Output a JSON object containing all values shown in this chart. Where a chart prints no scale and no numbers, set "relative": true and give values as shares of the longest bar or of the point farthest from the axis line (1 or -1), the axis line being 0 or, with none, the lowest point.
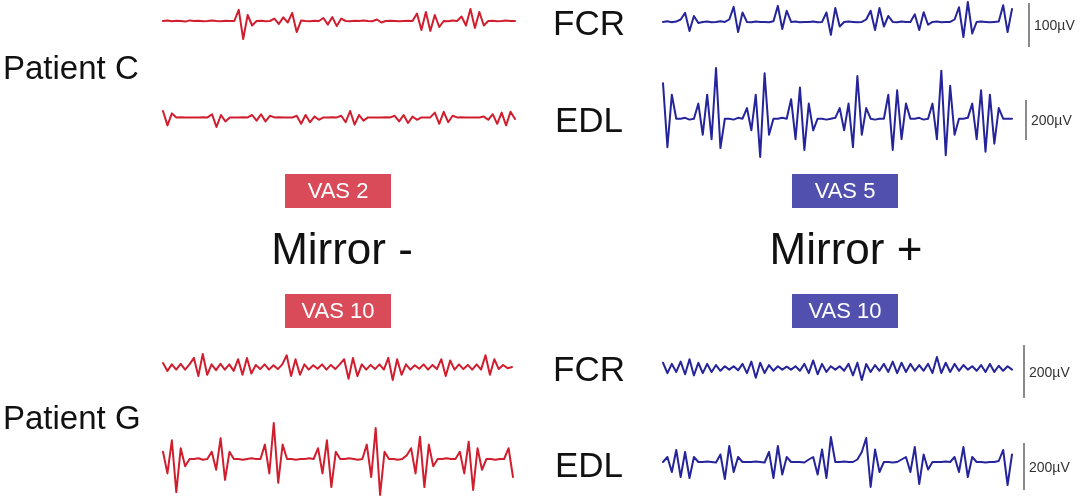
{
  "chart_data": [
    {
      "type": "line",
      "relative": true,
      "categories": [
        null,
        null,
        null,
        null,
        null,
        null,
        null,
        null,
        null,
        null,
        null,
        null,
        null,
        null,
        null,
        null,
        null,
        null,
        null,
        null,
        null,
        null,
        null,
        null,
        null,
        null,
        null,
        null,
        null,
        null,
        null,
        null,
        null,
        null,
        null,
        null,
        null,
        null,
        null,
        null,
        null,
        null,
        null,
        null,
        null,
        null,
        null,
        null,
        null,
        null,
        null,
        null,
        null,
        null,
        null,
        null,
        null,
        null,
        null,
        null,
        null,
        null,
        null,
        null,
        null,
        null,
        null,
        null,
        null,
        null,
        null,
        null,
        null,
        null,
        null,
        null,
        null,
        null,
        null,
        null
      ],
      "series": [
        {
          "color": "#d01e2e",
          "values": [
            0.6,
            0.62,
            0.59,
            0.61,
            0.6,
            0.58,
            0.62,
            0.6,
            0.61,
            0.59,
            0.6,
            0.62,
            0.6,
            0.59,
            0.61,
            0.6,
            0.6,
            0.97,
            0,
            0.8,
            0.45,
            0.6,
            0.61,
            0.59,
            0.6,
            0.68,
            0.5,
            0.72,
            0.55,
            0.87,
            0.23,
            0.62,
            0.6,
            0.59,
            0.61,
            0.6,
            0.7,
            0.48,
            0.73,
            0.43,
            0.68,
            0.6,
            0.59,
            0.61,
            0.6,
            0.62,
            0.6,
            0.59,
            0.65,
            0.55,
            0.6,
            0.61,
            0.6,
            0.59,
            0.6,
            0.61,
            0.6,
            0.85,
            0.3,
            0.9,
            0.27,
            0.8,
            0.4,
            0.6,
            0.59,
            0.62,
            0.6,
            0.75,
            0.45,
            1,
            0.37,
            0.9,
            0.45,
            0.6,
            0.61,
            0.59,
            0.6,
            0.62,
            0.6,
            0.6
          ]
        }
      ]
    },
    {
      "type": "line",
      "relative": true,
      "ylabel": "FCR",
      "annotations": [
        "100µV"
      ],
      "categories": [
        null,
        null,
        null,
        null,
        null,
        null,
        null,
        null,
        null,
        null,
        null,
        null,
        null,
        null,
        null,
        null,
        null,
        null,
        null,
        null,
        null,
        null,
        null,
        null,
        null,
        null,
        null,
        null,
        null,
        null,
        null,
        null,
        null,
        null,
        null,
        null,
        null,
        null,
        null,
        null,
        null,
        null,
        null,
        null,
        null,
        null,
        null,
        null,
        null,
        null,
        null,
        null,
        null,
        null,
        null,
        null,
        null,
        null,
        null,
        null,
        null,
        null,
        null,
        null,
        null,
        null,
        null,
        null,
        null,
        null,
        null,
        null,
        null,
        null,
        null,
        null,
        null,
        null,
        null,
        null
      ],
      "series": [
        {
          "color": "#25249a",
          "values": [
            0.43,
            0.45,
            0.42,
            0.44,
            0.5,
            0.69,
            0.17,
            0.6,
            0.4,
            0.43,
            0.44,
            0.42,
            0.43,
            0.45,
            0.43,
            0.5,
            0.86,
            0.14,
            0.7,
            0.43,
            0.42,
            0.44,
            0.43,
            0.43,
            0.42,
            0.45,
            0.89,
            0.23,
            0.75,
            0.43,
            0.44,
            0.42,
            0.43,
            0.43,
            0.44,
            0.42,
            0.43,
            0.7,
            0.06,
            0.83,
            0.3,
            0.43,
            0.44,
            0.43,
            0.42,
            0.43,
            0.5,
            0.75,
            0.2,
            0.83,
            0.3,
            0.6,
            0.43,
            0.42,
            0.44,
            0.43,
            0.43,
            0.65,
            0.2,
            0.71,
            0.35,
            0.43,
            0.44,
            0.42,
            0.43,
            0.43,
            0.5,
            0.85,
            0,
            1,
            0.1,
            0.43,
            0.44,
            0.43,
            0.42,
            0.43,
            0.44,
            0.91,
            0.14,
            0.8
          ]
        }
      ]
    },
    {
      "type": "line",
      "relative": true,
      "categories": [
        null,
        null,
        null,
        null,
        null,
        null,
        null,
        null,
        null,
        null,
        null,
        null,
        null,
        null,
        null,
        null,
        null,
        null,
        null,
        null,
        null,
        null,
        null,
        null,
        null,
        null,
        null,
        null,
        null,
        null,
        null,
        null,
        null,
        null,
        null,
        null,
        null,
        null,
        null,
        null,
        null,
        null,
        null,
        null,
        null,
        null,
        null,
        null,
        null,
        null,
        null,
        null,
        null,
        null,
        null,
        null,
        null,
        null,
        null,
        null,
        null,
        null,
        null,
        null,
        null,
        null,
        null,
        null,
        null,
        null,
        null,
        null,
        null,
        null,
        null,
        null,
        null,
        null,
        null,
        null
      ],
      "series": [
        {
          "color": "#d01e2e",
          "values": [
            1,
            0.1,
            0.85,
            0.6,
            0.61,
            0.6,
            0.59,
            0.6,
            0.6,
            0.61,
            0.6,
            0.8,
            0,
            0.75,
            0.35,
            0.6,
            0.6,
            0.59,
            0.61,
            0.6,
            0.75,
            0.4,
            0.8,
            0.35,
            0.7,
            0.6,
            0.61,
            0.6,
            0.6,
            0.59,
            0.7,
            0.2,
            0.75,
            0.3,
            0.65,
            0.45,
            0.6,
            0.6,
            0.61,
            0.6,
            0.7,
            0.3,
            1,
            0.15,
            0.75,
            0.4,
            0.6,
            0.6,
            0.59,
            0.6,
            0.61,
            0.6,
            0.7,
            0.35,
            0.75,
            0.25,
            0.65,
            0.45,
            0.6,
            0.6,
            0.6,
            0.9,
            0.2,
            0.95,
            0.3,
            0.7,
            0.6,
            0.61,
            0.6,
            0.6,
            0.59,
            0.6,
            0.65,
            0.45,
            0.8,
            0.2,
            0.9,
            0.1,
            0.95,
            0.5
          ]
        }
      ]
    },
    {
      "type": "line",
      "relative": true,
      "ylabel": "EDL",
      "annotations": [
        "200µV"
      ],
      "categories": [
        null,
        null,
        null,
        null,
        null,
        null,
        null,
        null,
        null,
        null,
        null,
        null,
        null,
        null,
        null,
        null,
        null,
        null,
        null,
        null,
        null,
        null,
        null,
        null,
        null,
        null,
        null,
        null,
        null,
        null,
        null,
        null,
        null,
        null,
        null,
        null,
        null,
        null,
        null,
        null,
        null,
        null,
        null,
        null,
        null,
        null,
        null,
        null,
        null,
        null,
        null,
        null,
        null,
        null,
        null,
        null,
        null,
        null,
        null,
        null,
        null,
        null,
        null,
        null,
        null,
        null,
        null,
        null,
        null,
        null,
        null,
        null,
        null,
        null,
        null,
        null,
        null,
        null,
        null,
        null
      ],
      "series": [
        {
          "color": "#25249a",
          "values": [
            0.83,
            0.11,
            0.7,
            0.43,
            0.43,
            0.44,
            0.42,
            0.43,
            0.6,
            0.25,
            0.7,
            0.2,
            1,
            0.1,
            0.43,
            0.43,
            0.42,
            0.44,
            0.43,
            0.55,
            0.3,
            0.7,
            0,
            0.94,
            0.25,
            0.43,
            0.43,
            0.44,
            0.43,
            0.65,
            0.2,
            0.78,
            0.08,
            0.6,
            0.3,
            0.43,
            0.43,
            0.42,
            0.43,
            0.44,
            0.55,
            0.3,
            0.6,
            0.11,
            0.91,
            0.25,
            0.55,
            0.43,
            0.42,
            0.43,
            0.43,
            0.7,
            0.08,
            0.75,
            0.2,
            0.6,
            0.43,
            0.43,
            0.44,
            0.42,
            0.43,
            0.6,
            0.2,
            0.97,
            0.02,
            0.8,
            0.25,
            0.43,
            0.43,
            0.44,
            0.6,
            0.2,
            0.75,
            0.06,
            0.7,
            0.15,
            0.55,
            0.43,
            0.43,
            0.43
          ]
        }
      ]
    },
    {
      "type": "line",
      "relative": true,
      "categories": [
        null,
        null,
        null,
        null,
        null,
        null,
        null,
        null,
        null,
        null,
        null,
        null,
        null,
        null,
        null,
        null,
        null,
        null,
        null,
        null,
        null,
        null,
        null,
        null,
        null,
        null,
        null,
        null,
        null,
        null,
        null,
        null,
        null,
        null,
        null,
        null,
        null,
        null,
        null,
        null,
        null,
        null,
        null,
        null,
        null,
        null,
        null,
        null,
        null,
        null,
        null,
        null,
        null,
        null,
        null,
        null,
        null,
        null,
        null,
        null,
        null,
        null,
        null,
        null,
        null,
        null,
        null,
        null,
        null,
        null,
        null,
        null,
        null,
        null,
        null,
        null,
        null,
        null,
        null,
        null
      ],
      "series": [
        {
          "color": "#d01e2e",
          "values": [
            0.65,
            0.35,
            0.6,
            0.4,
            0.62,
            0.4,
            0.6,
            0.85,
            0.15,
            1,
            0.2,
            0.6,
            0.38,
            0.62,
            0.4,
            0.6,
            0.35,
            0.8,
            0.2,
            0.85,
            0.25,
            0.58,
            0.42,
            0.6,
            0.4,
            0.57,
            0.42,
            0.6,
            0.95,
            0.15,
            0.8,
            0.2,
            0.6,
            0.4,
            0.57,
            0.43,
            0.6,
            0.4,
            0.58,
            0.42,
            0.6,
            0.8,
            0.05,
            0.85,
            0.15,
            0.6,
            0.4,
            0.58,
            0.42,
            0.6,
            0.4,
            0.85,
            0,
            0.8,
            0.2,
            0.6,
            0.4,
            0.57,
            0.43,
            0.6,
            0.4,
            0.58,
            0.42,
            0.8,
            0.15,
            0.75,
            0.4,
            0.6,
            0.42,
            0.58,
            0.4,
            0.6,
            0.4,
            0.95,
            0.2,
            0.8,
            0.42,
            0.58,
            0.45,
            0.5
          ]
        }
      ]
    },
    {
      "type": "line",
      "relative": true,
      "ylabel": "FCR",
      "annotations": [
        "200µV"
      ],
      "categories": [
        null,
        null,
        null,
        null,
        null,
        null,
        null,
        null,
        null,
        null,
        null,
        null,
        null,
        null,
        null,
        null,
        null,
        null,
        null,
        null,
        null,
        null,
        null,
        null,
        null,
        null,
        null,
        null,
        null,
        null,
        null,
        null,
        null,
        null,
        null,
        null,
        null,
        null,
        null,
        null,
        null,
        null,
        null,
        null,
        null,
        null,
        null,
        null,
        null,
        null,
        null,
        null,
        null,
        null,
        null,
        null,
        null,
        null,
        null,
        null,
        null,
        null,
        null,
        null,
        null,
        null,
        null,
        null,
        null,
        null,
        null,
        null,
        null,
        null,
        null,
        null,
        null,
        null,
        null,
        null
      ],
      "series": [
        {
          "color": "#25249a",
          "values": [
            0.75,
            0.3,
            0.7,
            0.35,
            0.8,
            0.25,
            0.9,
            0.2,
            0.75,
            0.3,
            0.7,
            0.35,
            0.65,
            0.4,
            0.6,
            0.45,
            0.6,
            0.42,
            0.7,
            0.3,
            0.8,
            0.1,
            0.75,
            0.3,
            0.65,
            0.4,
            0.6,
            0.45,
            0.58,
            0.45,
            0.6,
            0.4,
            0.7,
            0.3,
            0.85,
            0.25,
            0.7,
            0.35,
            0.6,
            0.45,
            0.6,
            0.4,
            0.7,
            0.2,
            0.75,
            0,
            0.7,
            0.35,
            0.65,
            0.4,
            0.7,
            0.35,
            0.8,
            0.3,
            0.75,
            0.35,
            0.7,
            0.4,
            0.65,
            0.4,
            0.7,
            0.3,
            1,
            0.3,
            0.75,
            0.35,
            0.7,
            0.4,
            0.65,
            0.45,
            0.6,
            0.4,
            0.65,
            0.35,
            0.7,
            0.35,
            0.62,
            0.4,
            0.6,
            0.45
          ]
        }
      ]
    },
    {
      "type": "line",
      "relative": true,
      "categories": [
        null,
        null,
        null,
        null,
        null,
        null,
        null,
        null,
        null,
        null,
        null,
        null,
        null,
        null,
        null,
        null,
        null,
        null,
        null,
        null,
        null,
        null,
        null,
        null,
        null,
        null,
        null,
        null,
        null,
        null,
        null,
        null,
        null,
        null,
        null,
        null,
        null,
        null,
        null,
        null,
        null,
        null,
        null,
        null,
        null,
        null,
        null,
        null,
        null,
        null,
        null,
        null,
        null,
        null,
        null,
        null,
        null,
        null,
        null,
        null,
        null,
        null,
        null,
        null,
        null,
        null,
        null,
        null,
        null,
        null,
        null,
        null,
        null,
        null,
        null,
        null,
        null,
        null,
        null,
        null
      ],
      "series": [
        {
          "color": "#d01e2e",
          "values": [
            0.6,
            0.3,
            0.76,
            0.04,
            0.65,
            0.4,
            0.5,
            0.5,
            0.51,
            0.49,
            0.5,
            0.6,
            0.35,
            0.79,
            0.21,
            0.6,
            0.5,
            0.5,
            0.49,
            0.5,
            0.51,
            0.5,
            0.5,
            0.7,
            0.3,
            1,
            0.17,
            0.7,
            0.5,
            0.5,
            0.49,
            0.5,
            0.5,
            0.51,
            0.5,
            0.65,
            0.3,
            0.76,
            0.11,
            0.6,
            0.5,
            0.5,
            0.51,
            0.5,
            0.49,
            0.5,
            0.7,
            0.25,
            0.93,
            0,
            0.6,
            0.5,
            0.5,
            0.49,
            0.5,
            0.55,
            0.65,
            0.3,
            0.81,
            0.11,
            0.7,
            0.4,
            0.5,
            0.5,
            0.51,
            0.5,
            0.5,
            0.6,
            0.3,
            0.74,
            0.07,
            0.65,
            0.35,
            0.5,
            0.5,
            0.49,
            0.5,
            0.5,
            0.65,
            0.25
          ]
        }
      ]
    },
    {
      "type": "line",
      "relative": true,
      "ylabel": "EDL",
      "annotations": [
        "200µV"
      ],
      "categories": [
        null,
        null,
        null,
        null,
        null,
        null,
        null,
        null,
        null,
        null,
        null,
        null,
        null,
        null,
        null,
        null,
        null,
        null,
        null,
        null,
        null,
        null,
        null,
        null,
        null,
        null,
        null,
        null,
        null,
        null,
        null,
        null,
        null,
        null,
        null,
        null,
        null,
        null,
        null,
        null,
        null,
        null,
        null,
        null,
        null,
        null,
        null,
        null,
        null,
        null,
        null,
        null,
        null,
        null,
        null,
        null,
        null,
        null,
        null,
        null,
        null,
        null,
        null,
        null,
        null,
        null,
        null,
        null,
        null,
        null,
        null,
        null,
        null,
        null,
        null,
        null,
        null,
        null,
        null,
        null
      ],
      "series": [
        {
          "color": "#25249a",
          "values": [
            0.5,
            0.6,
            0.3,
            0.74,
            0.2,
            0.7,
            0.18,
            0.6,
            0.5,
            0.5,
            0.51,
            0.5,
            0.49,
            0.65,
            0.16,
            0.82,
            0.3,
            0.6,
            0.5,
            0.5,
            0.5,
            0.51,
            0.5,
            0.49,
            0.7,
            0.18,
            0.82,
            0.25,
            0.6,
            0.5,
            0.5,
            0.5,
            0.49,
            0.55,
            0.6,
            0.25,
            0.75,
            0.18,
            1,
            0.5,
            0.5,
            0.51,
            0.5,
            0.5,
            0.55,
            0.7,
            0.98,
            0,
            0.75,
            0.3,
            0.5,
            0.5,
            0.49,
            0.5,
            0.55,
            0.6,
            0.3,
            0.8,
            0.06,
            0.65,
            0.35,
            0.5,
            0.5,
            0.5,
            0.51,
            0.5,
            0.6,
            0.3,
            0.8,
            0.2,
            0.6,
            0.5,
            0.5,
            0.49,
            0.5,
            0.5,
            0.52,
            0.74,
            0.04,
            0.65
          ]
        }
      ]
    },
    {
      "type": "other",
      "annotations": [
        "Patient C",
        "Patient G",
        "Mirror -",
        "Mirror +",
        "VAS 2",
        "VAS 5",
        "VAS 10",
        "VAS 10"
      ]
    }
  ]
}
